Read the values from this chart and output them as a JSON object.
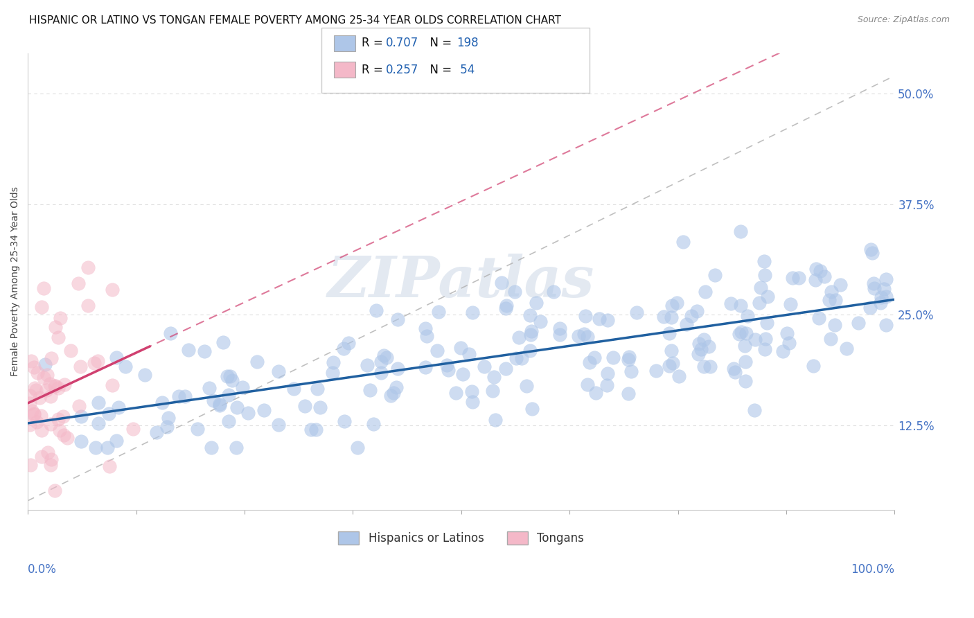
{
  "title": "HISPANIC OR LATINO VS TONGAN FEMALE POVERTY AMONG 25-34 YEAR OLDS CORRELATION CHART",
  "source": "Source: ZipAtlas.com",
  "ylabel": "Female Poverty Among 25-34 Year Olds",
  "yticks_labels": [
    "12.5%",
    "25.0%",
    "37.5%",
    "50.0%"
  ],
  "ytick_vals": [
    0.125,
    0.25,
    0.375,
    0.5
  ],
  "xlim": [
    0.0,
    1.0
  ],
  "ylim": [
    0.03,
    0.545
  ],
  "scatter_blue_color": "#aec6e8",
  "scatter_pink_color": "#f4b8c8",
  "line_blue_color": "#2060a0",
  "line_pink_color": "#d04070",
  "line_blue_R": 0.707,
  "line_blue_N": 198,
  "line_pink_R": 0.257,
  "line_pink_N": 54,
  "watermark": "ZIPatlas",
  "watermark_color": "#c8d4e4",
  "background_color": "#ffffff",
  "grid_color": "#dddddd",
  "title_fontsize": 11,
  "tick_label_color": "#4472c4",
  "legend_label_color": "#333333"
}
